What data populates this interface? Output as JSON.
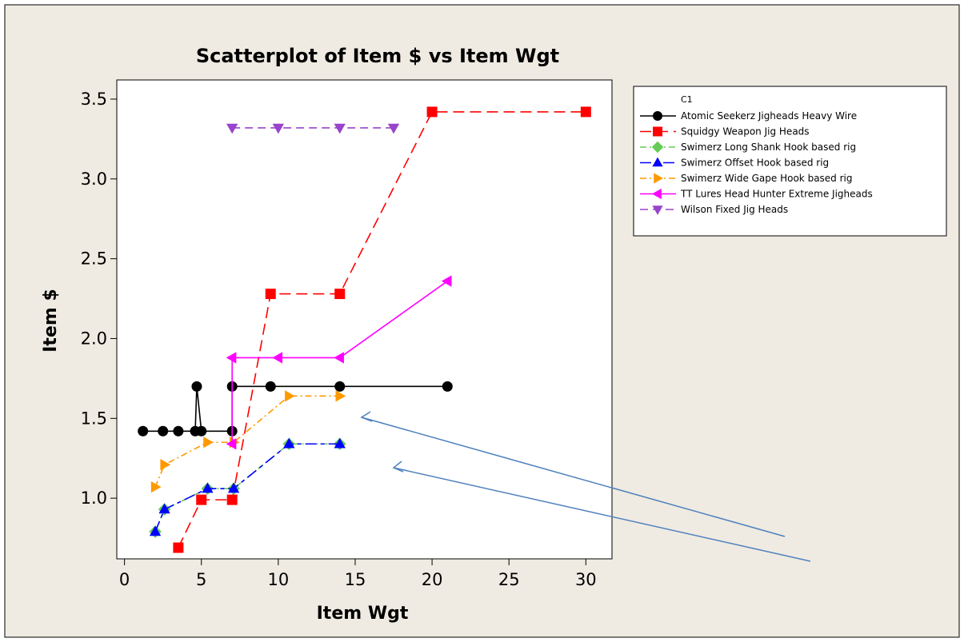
{
  "chart_data": {
    "type": "line",
    "title": "Scatterplot of Item $ vs Item Wgt",
    "xlabel": "Item Wgt",
    "ylabel": "Item $",
    "xlim": [
      -0.5,
      31.7
    ],
    "ylim": [
      0.62,
      3.62
    ],
    "xticks": [
      0,
      5,
      10,
      15,
      20,
      25,
      30
    ],
    "yticks": [
      1.0,
      1.5,
      2.0,
      2.5,
      3.0,
      3.5
    ],
    "xtick_labels": [
      "0",
      "5",
      "10",
      "15",
      "20",
      "25",
      "30"
    ],
    "ytick_labels": [
      "1.0",
      "1.5",
      "2.0",
      "2.5",
      "3.0",
      "3.5"
    ],
    "legend_title": "C1",
    "legend_position": "right",
    "grid": false,
    "series": [
      {
        "name": "Atomic Seekerz Jigheads Heavy Wire",
        "color": "#000000",
        "marker": "circle",
        "dash": "solid",
        "points": [
          [
            1.2,
            1.42
          ],
          [
            2.5,
            1.42
          ],
          [
            3.5,
            1.42
          ],
          [
            4.6,
            1.42
          ],
          [
            4.7,
            1.7
          ],
          [
            5.0,
            1.42
          ],
          [
            7.0,
            1.42
          ],
          [
            7.0,
            1.7
          ],
          [
            9.5,
            1.7
          ],
          [
            14.0,
            1.7
          ],
          [
            21.0,
            1.7
          ]
        ]
      },
      {
        "name": "Squidgy Weapon Jig Heads",
        "color": "#ff0000",
        "marker": "square",
        "dash": "long",
        "points": [
          [
            3.5,
            0.69
          ],
          [
            5.0,
            0.99
          ],
          [
            7.0,
            0.99
          ],
          [
            9.5,
            2.28
          ],
          [
            14.0,
            2.28
          ],
          [
            20.0,
            3.42
          ],
          [
            30.0,
            3.42
          ]
        ]
      },
      {
        "name": "Swimerz Long Shank Hook based rig",
        "color": "#66cc55",
        "marker": "diamond",
        "dash": "dashdot",
        "points": [
          [
            2.0,
            0.79
          ],
          [
            2.6,
            0.93
          ],
          [
            5.4,
            1.06
          ],
          [
            7.1,
            1.06
          ],
          [
            10.7,
            1.34
          ],
          [
            14.0,
            1.34
          ]
        ]
      },
      {
        "name": "Swimerz Offset Hook based rig",
        "color": "#0000ff",
        "marker": "triangle-up",
        "dash": "longshort",
        "points": [
          [
            2.0,
            0.79
          ],
          [
            2.6,
            0.93
          ],
          [
            5.4,
            1.06
          ],
          [
            7.1,
            1.06
          ],
          [
            10.7,
            1.34
          ],
          [
            14.0,
            1.34
          ]
        ]
      },
      {
        "name": "Swimerz Wide Gape Hook based rig",
        "color": "#ff9900",
        "marker": "triangle-right",
        "dash": "dashdot",
        "points": [
          [
            2.0,
            1.07
          ],
          [
            2.6,
            1.21
          ],
          [
            5.4,
            1.35
          ],
          [
            7.1,
            1.35
          ],
          [
            10.7,
            1.64
          ],
          [
            14.0,
            1.64
          ]
        ]
      },
      {
        "name": "TT Lures Head Hunter Extreme Jigheads",
        "color": "#ff00ff",
        "marker": "triangle-left",
        "dash": "solid",
        "points": [
          [
            7.0,
            1.34
          ],
          [
            7.0,
            1.88
          ],
          [
            10.0,
            1.88
          ],
          [
            14.0,
            1.88
          ],
          [
            21.0,
            2.36
          ]
        ]
      },
      {
        "name": "Wilson Fixed Jig Heads",
        "color": "#9944cc",
        "marker": "triangle-down",
        "dash": "dash",
        "points": [
          [
            7.0,
            3.32
          ],
          [
            10.0,
            3.32
          ],
          [
            14.0,
            3.32
          ],
          [
            17.5,
            3.32
          ]
        ]
      }
    ]
  },
  "colors": {
    "background": "#efebe2",
    "plot_area": "#ffffff",
    "annotation_arrow": "#4f81bd"
  }
}
